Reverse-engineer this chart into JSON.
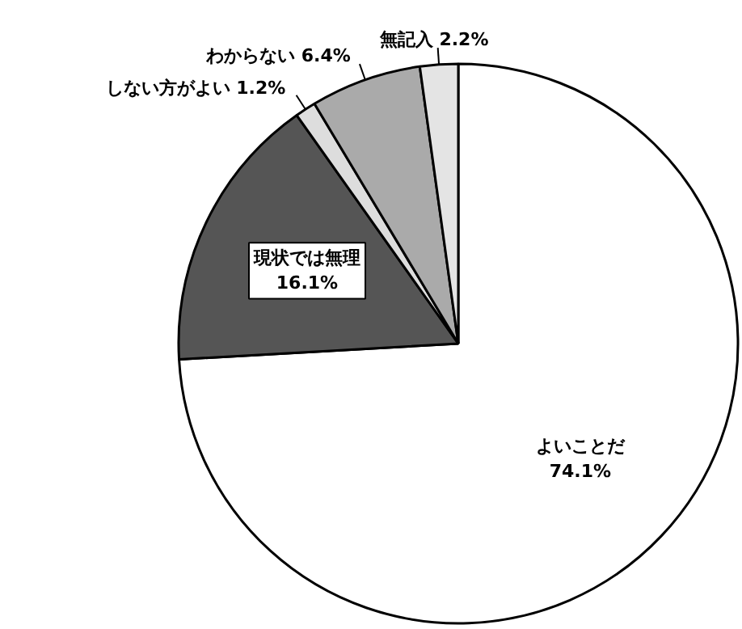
{
  "chart_data": {
    "type": "pie",
    "categories": [
      "よいことだ",
      "現状では無理",
      "しない方がよい",
      "わからない",
      "無記入"
    ],
    "values": [
      74.1,
      16.1,
      1.2,
      6.4,
      2.2
    ],
    "colors": [
      "#ffffff",
      "#555555",
      "#dddddd",
      "#aaaaaa",
      "#e4e4e4"
    ],
    "value_labels": [
      "74.1%",
      "16.1%",
      "1.2%",
      "6.4%",
      "2.2%"
    ]
  }
}
